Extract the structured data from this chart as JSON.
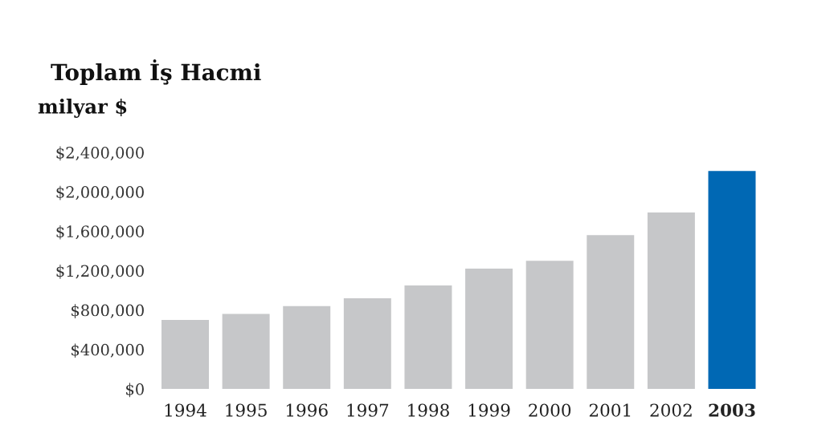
{
  "chart_data": {
    "type": "bar",
    "title": "Toplam İş Hacmi",
    "ylabel": "milyar $",
    "categories": [
      "1994",
      "1995",
      "1996",
      "1997",
      "1998",
      "1999",
      "2000",
      "2001",
      "2002",
      "2003"
    ],
    "values": [
      700000,
      760000,
      840000,
      920000,
      1050000,
      1220000,
      1300000,
      1560000,
      1790000,
      2210000
    ],
    "colors": [
      "#c6c7c9",
      "#c6c7c9",
      "#c6c7c9",
      "#c6c7c9",
      "#c6c7c9",
      "#c6c7c9",
      "#c6c7c9",
      "#c6c7c9",
      "#c6c7c9",
      "#0068b4"
    ],
    "ylim": [
      0,
      2400000
    ],
    "yticks": [
      {
        "value": 0,
        "label": "$0"
      },
      {
        "value": 400000,
        "label": "$400,000"
      },
      {
        "value": 800000,
        "label": "$800,000"
      },
      {
        "value": 1200000,
        "label": "$1,200,000"
      },
      {
        "value": 1600000,
        "label": "$1,600,000"
      },
      {
        "value": 2000000,
        "label": "$2,000,000"
      },
      {
        "value": 2400000,
        "label": "$2,400,000"
      }
    ]
  }
}
